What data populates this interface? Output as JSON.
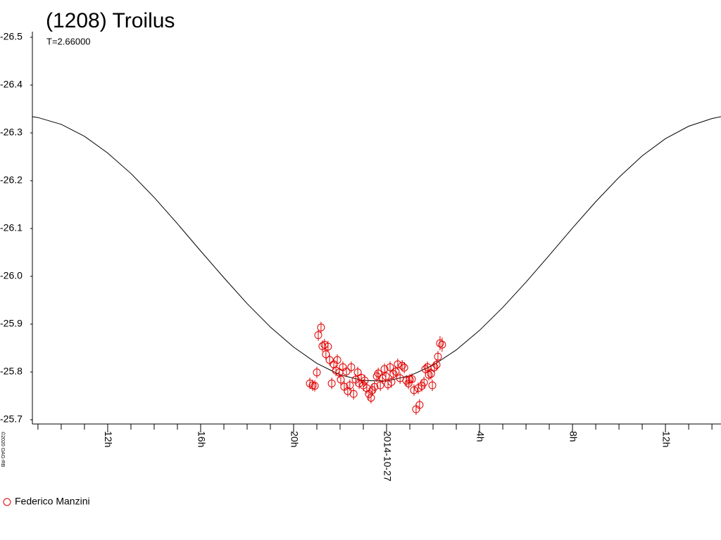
{
  "chart_data": {
    "type": "scatter",
    "title": "(1208) Troilus",
    "subtitle": "T=2.66000",
    "copyright": "©2020 OAG-RB",
    "xlim": [
      8.76,
      38.39
    ],
    "xticks": [
      {
        "value": 12,
        "label": "12h"
      },
      {
        "value": 16,
        "label": "16h"
      },
      {
        "value": 20,
        "label": "20h"
      },
      {
        "value": 24,
        "label": "2014-10-27"
      },
      {
        "value": 28,
        "label": "4h"
      },
      {
        "value": 32,
        "label": "8h"
      },
      {
        "value": 36,
        "label": "12h"
      }
    ],
    "xminorticks": [
      9,
      10,
      11,
      13,
      14,
      15,
      17,
      18,
      19,
      21,
      22,
      23,
      25,
      26,
      27,
      29,
      30,
      31,
      33,
      34,
      35,
      37,
      38
    ],
    "ylim": [
      -25.7,
      -26.5
    ],
    "yticks": [
      -26.5,
      -26.4,
      -26.3,
      -26.2,
      -26.1,
      {
        "value": -26.0,
        "label": "-26.0"
      },
      -25.9,
      -25.8,
      -25.7
    ],
    "curve": {
      "color": "#000000",
      "x": [
        8.76,
        9,
        10,
        11,
        12,
        13,
        14,
        15,
        16,
        17,
        18,
        19,
        20,
        21,
        22,
        23,
        24,
        25,
        26,
        27,
        28,
        29,
        30,
        31,
        32,
        33,
        34,
        35,
        36,
        37,
        38,
        38.39
      ],
      "values": [
        -26.334,
        -26.332,
        -26.318,
        -26.293,
        -26.258,
        -26.215,
        -26.165,
        -26.11,
        -26.053,
        -25.997,
        -25.943,
        -25.894,
        -25.852,
        -25.818,
        -25.794,
        -25.782,
        -25.781,
        -25.792,
        -25.814,
        -25.846,
        -25.887,
        -25.935,
        -25.988,
        -26.044,
        -26.101,
        -26.156,
        -26.207,
        -26.252,
        -26.288,
        -26.314,
        -26.33,
        -26.334
      ]
    },
    "series": [
      {
        "name": "Federico Manzini",
        "color": "#e00000",
        "x": [
          20.7,
          20.82,
          20.91,
          21.0,
          21.06,
          21.18,
          21.24,
          21.33,
          21.39,
          21.48,
          21.55,
          21.64,
          21.73,
          21.82,
          21.88,
          21.97,
          22.03,
          22.12,
          22.18,
          22.27,
          22.33,
          22.42,
          22.48,
          22.58,
          22.67,
          22.76,
          22.82,
          22.91,
          23.0,
          23.06,
          23.15,
          23.24,
          23.33,
          23.39,
          23.48,
          23.58,
          23.64,
          23.73,
          23.82,
          23.91,
          23.97,
          24.06,
          24.15,
          24.21,
          24.3,
          24.39,
          24.48,
          24.58,
          24.67,
          24.76,
          24.85,
          24.94,
          25.0,
          25.09,
          25.18,
          25.27,
          25.36,
          25.42,
          25.52,
          25.61,
          25.67,
          25.76,
          25.82,
          25.91,
          25.97,
          26.06,
          26.15,
          26.21,
          26.3,
          26.39
        ],
        "values": [
          -25.776,
          -25.772,
          -25.771,
          -25.799,
          -25.877,
          -25.893,
          -25.854,
          -25.857,
          -25.837,
          -25.853,
          -25.825,
          -25.776,
          -25.816,
          -25.803,
          -25.825,
          -25.799,
          -25.784,
          -25.81,
          -25.769,
          -25.801,
          -25.76,
          -25.772,
          -25.81,
          -25.754,
          -25.784,
          -25.799,
          -25.776,
          -25.788,
          -25.772,
          -25.782,
          -25.766,
          -25.754,
          -25.746,
          -25.762,
          -25.769,
          -25.791,
          -25.797,
          -25.772,
          -25.787,
          -25.806,
          -25.791,
          -25.774,
          -25.81,
          -25.779,
          -25.796,
          -25.801,
          -25.816,
          -25.787,
          -25.813,
          -25.809,
          -25.782,
          -25.776,
          -25.784,
          -25.785,
          -25.762,
          -25.722,
          -25.766,
          -25.731,
          -25.771,
          -25.778,
          -25.806,
          -25.81,
          -25.794,
          -25.796,
          -25.772,
          -25.81,
          -25.815,
          -25.832,
          -25.86,
          -25.857
        ],
        "errors": [
          0.012,
          0.012,
          0.012,
          0.012,
          0.012,
          0.012,
          0.012,
          0.012,
          0.012,
          0.012,
          0.012,
          0.012,
          0.012,
          0.012,
          0.012,
          0.012,
          0.012,
          0.012,
          0.012,
          0.012,
          0.012,
          0.012,
          0.012,
          0.012,
          0.012,
          0.012,
          0.012,
          0.012,
          0.012,
          0.012,
          0.012,
          0.012,
          0.012,
          0.012,
          0.012,
          0.012,
          0.012,
          0.012,
          0.012,
          0.012,
          0.012,
          0.012,
          0.012,
          0.012,
          0.012,
          0.012,
          0.012,
          0.012,
          0.012,
          0.012,
          0.012,
          0.012,
          0.012,
          0.012,
          0.012,
          0.012,
          0.012,
          0.012,
          0.012,
          0.012,
          0.012,
          0.012,
          0.012,
          0.012,
          0.012,
          0.012,
          0.012,
          0.012,
          0.015,
          0.015
        ]
      }
    ]
  }
}
